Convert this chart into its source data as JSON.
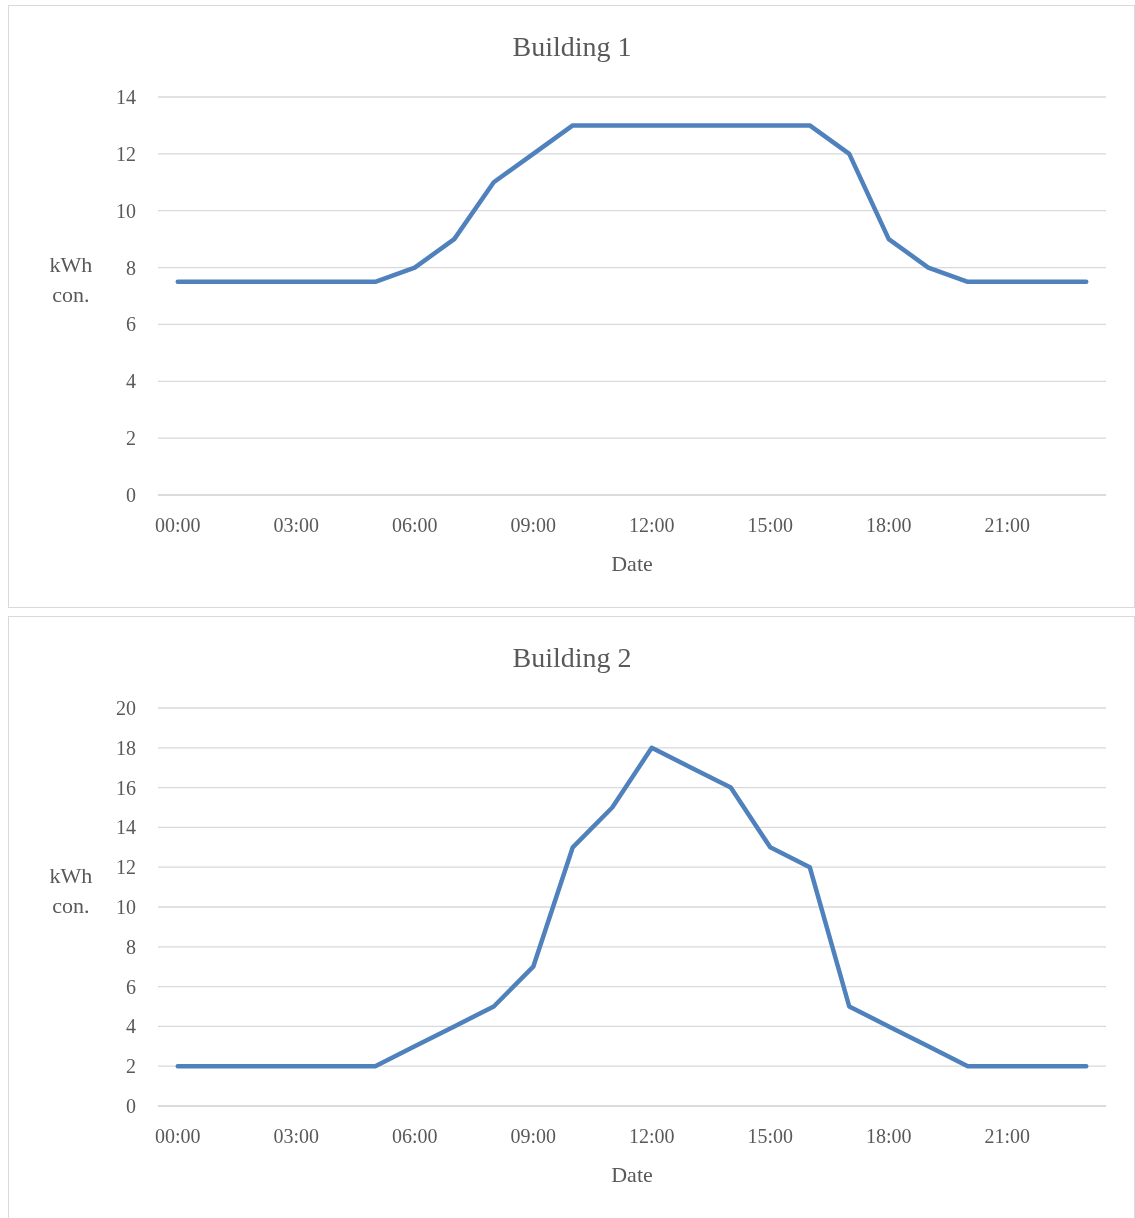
{
  "chart_data": [
    {
      "type": "line",
      "title": "Building 1",
      "xlabel": "Date",
      "ylabel": "kWh con.",
      "grid": "y",
      "x": [
        0,
        1,
        2,
        3,
        4,
        5,
        6,
        7,
        8,
        9,
        10,
        11,
        12,
        13,
        14,
        15,
        16,
        17,
        18,
        19,
        20,
        21,
        22,
        23
      ],
      "xlim": [
        -0.5,
        23.5
      ],
      "xticks": [
        {
          "value": 0,
          "label": "00:00"
        },
        {
          "value": 3,
          "label": "03:00"
        },
        {
          "value": 6,
          "label": "06:00"
        },
        {
          "value": 9,
          "label": "09:00"
        },
        {
          "value": 12,
          "label": "12:00"
        },
        {
          "value": 15,
          "label": "15:00"
        },
        {
          "value": 18,
          "label": "18:00"
        },
        {
          "value": 21,
          "label": "21:00"
        }
      ],
      "ylim": [
        0,
        14
      ],
      "yticks": [
        0,
        2,
        4,
        6,
        8,
        10,
        12,
        14
      ],
      "series": [
        {
          "color": "#4f81bd",
          "values": [
            7.5,
            7.5,
            7.5,
            7.5,
            7.5,
            7.5,
            8,
            9,
            11,
            12,
            13,
            13,
            13,
            13,
            13,
            13,
            13,
            12,
            9,
            8,
            7.5,
            7.5,
            7.5,
            7.5
          ]
        }
      ]
    },
    {
      "type": "line",
      "title": "Building 2",
      "xlabel": "Date",
      "ylabel": "kWh con.",
      "grid": "y",
      "x": [
        0,
        1,
        2,
        3,
        4,
        5,
        6,
        7,
        8,
        9,
        10,
        11,
        12,
        13,
        14,
        15,
        16,
        17,
        18,
        19,
        20,
        21,
        22,
        23
      ],
      "xlim": [
        -0.5,
        23.5
      ],
      "xticks": [
        {
          "value": 0,
          "label": "00:00"
        },
        {
          "value": 3,
          "label": "03:00"
        },
        {
          "value": 6,
          "label": "06:00"
        },
        {
          "value": 9,
          "label": "09:00"
        },
        {
          "value": 12,
          "label": "12:00"
        },
        {
          "value": 15,
          "label": "15:00"
        },
        {
          "value": 18,
          "label": "18:00"
        },
        {
          "value": 21,
          "label": "21:00"
        }
      ],
      "ylim": [
        0,
        20
      ],
      "yticks": [
        0,
        2,
        4,
        6,
        8,
        10,
        12,
        14,
        16,
        18,
        20
      ],
      "series": [
        {
          "color": "#4f81bd",
          "values": [
            2,
            2,
            2,
            2,
            2,
            2,
            3,
            4,
            5,
            7,
            13,
            15,
            18,
            17,
            16,
            13,
            12,
            5,
            4,
            3,
            2,
            2,
            2,
            2
          ]
        }
      ]
    }
  ]
}
